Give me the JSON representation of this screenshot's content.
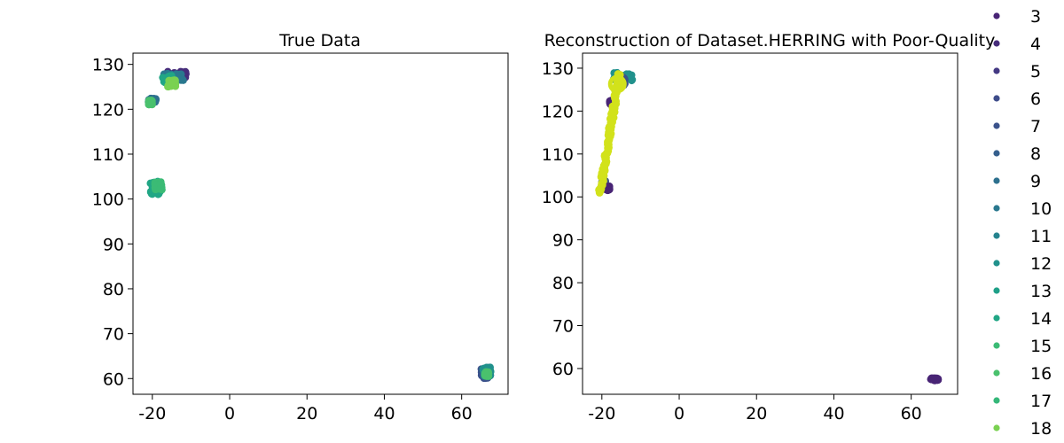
{
  "chart_data": [
    {
      "type": "scatter",
      "title": "True Data",
      "xlabel": "",
      "ylabel": "",
      "xlim": [
        -25,
        72
      ],
      "ylim": [
        56.5,
        132.5
      ],
      "xticks": [
        "-20",
        "0",
        "20",
        "40",
        "60"
      ],
      "yticks": [
        "60",
        "70",
        "80",
        "90",
        "100",
        "110",
        "120",
        "130"
      ],
      "clusters": [
        {
          "x_range": [
            -16,
            -11
          ],
          "y_range": [
            127,
            128.5
          ],
          "label_value": 4
        },
        {
          "x_range": [
            -17,
            -12
          ],
          "y_range": [
            126,
            128
          ],
          "label_value": 10
        },
        {
          "x_range": [
            -17.5,
            -15
          ],
          "y_range": [
            125.5,
            127.5
          ],
          "label_value": 14
        },
        {
          "x_range": [
            -16,
            -14
          ],
          "y_range": [
            125,
            126.5
          ],
          "label_value": 18
        },
        {
          "x_range": [
            -21,
            -19
          ],
          "y_range": [
            121.5,
            122.5
          ],
          "label_value": 9
        },
        {
          "x_range": [
            -21,
            -20
          ],
          "y_range": [
            121,
            122
          ],
          "label_value": 16
        },
        {
          "x_range": [
            -20.5,
            -18
          ],
          "y_range": [
            101,
            104
          ],
          "label_value": 14
        },
        {
          "x_range": [
            -19.5,
            -17.5
          ],
          "y_range": [
            102,
            104
          ],
          "label_value": 15
        },
        {
          "x_range": [
            65,
            67.5
          ],
          "y_range": [
            60,
            62.5
          ],
          "label_value": 7
        },
        {
          "x_range": [
            65.5,
            67.5
          ],
          "y_range": [
            60.5,
            62.5
          ],
          "label_value": 12
        },
        {
          "x_range": [
            66,
            67
          ],
          "y_range": [
            60.5,
            61.5
          ],
          "label_value": 16
        }
      ]
    },
    {
      "type": "scatter",
      "title": "Reconstruction of Dataset.HERRING with Poor-Quality",
      "xlabel": "",
      "ylabel": "",
      "xlim": [
        -25,
        72
      ],
      "ylim": [
        54,
        133.5
      ],
      "xticks": [
        "-20",
        "0",
        "20",
        "40",
        "60"
      ],
      "yticks": [
        "60",
        "70",
        "80",
        "90",
        "100",
        "110",
        "120",
        "130"
      ],
      "clusters": [
        {
          "x_range": [
            -17,
            -12
          ],
          "y_range": [
            127,
            129
          ],
          "label_value": 12
        },
        {
          "x_range": [
            -16,
            -14
          ],
          "y_range": [
            126,
            128
          ],
          "label_value": 7
        },
        {
          "x_range": [
            -18,
            -17
          ],
          "y_range": [
            121.5,
            122.5
          ],
          "label_value": 3
        },
        {
          "x_range": [
            -20,
            -19
          ],
          "y_range": [
            102,
            104
          ],
          "label_value": 7
        },
        {
          "x_range": [
            -19,
            -18
          ],
          "y_range": [
            101.5,
            102.5
          ],
          "label_value": 3
        },
        {
          "x_range": [
            65,
            67
          ],
          "y_range": [
            57.2,
            57.8
          ],
          "label_value": 3
        }
      ],
      "trail": {
        "from": [
          -20.5,
          100.8
        ],
        "to": [
          -15.5,
          128.5
        ],
        "label_value": 18
      },
      "ring": {
        "center": [
          -16,
          126.3
        ],
        "label_value": 18
      }
    }
  ],
  "legend": {
    "entries": [
      {
        "label": "3",
        "color": "#482475"
      },
      {
        "label": "4",
        "color": "#472d7b"
      },
      {
        "label": "5",
        "color": "#443983"
      },
      {
        "label": "6",
        "color": "#3e4c8a"
      },
      {
        "label": "7",
        "color": "#3b528b"
      },
      {
        "label": "8",
        "color": "#355f8d"
      },
      {
        "label": "9",
        "color": "#2d708e"
      },
      {
        "label": "10",
        "color": "#2a788e"
      },
      {
        "label": "11",
        "color": "#25838e"
      },
      {
        "label": "12",
        "color": "#21918c"
      },
      {
        "label": "13",
        "color": "#1fa088"
      },
      {
        "label": "14",
        "color": "#21a685"
      },
      {
        "label": "15",
        "color": "#3bbb75"
      },
      {
        "label": "16",
        "color": "#4ac16d"
      },
      {
        "label": "17",
        "color": "#35b779"
      },
      {
        "label": "18",
        "color": "#7ad151"
      }
    ]
  },
  "colors": {
    "trail": "#d2e21b",
    "dark": "#440154"
  }
}
